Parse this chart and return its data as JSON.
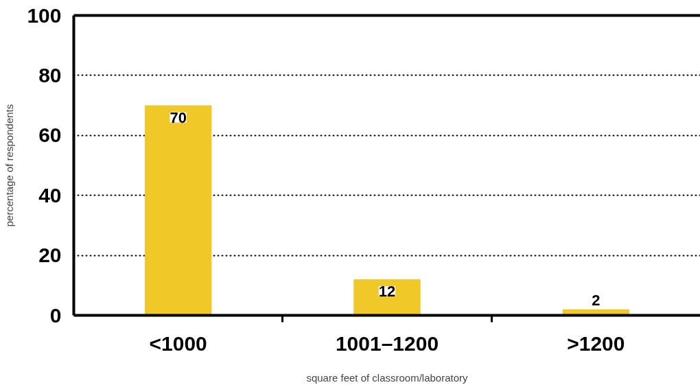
{
  "chart_data": {
    "type": "bar",
    "xlabel": "square feet of classroom/laboratory",
    "ylabel": "percentage of respondents",
    "categories": [
      "<1000",
      "1001–1200",
      ">1200"
    ],
    "values": [
      70,
      12,
      2
    ],
    "color": "#f0c828",
    "ylim": [
      0,
      100
    ],
    "yticks": [
      0,
      20,
      40,
      60,
      80,
      100
    ],
    "grid": "y",
    "data_labels": true
  }
}
